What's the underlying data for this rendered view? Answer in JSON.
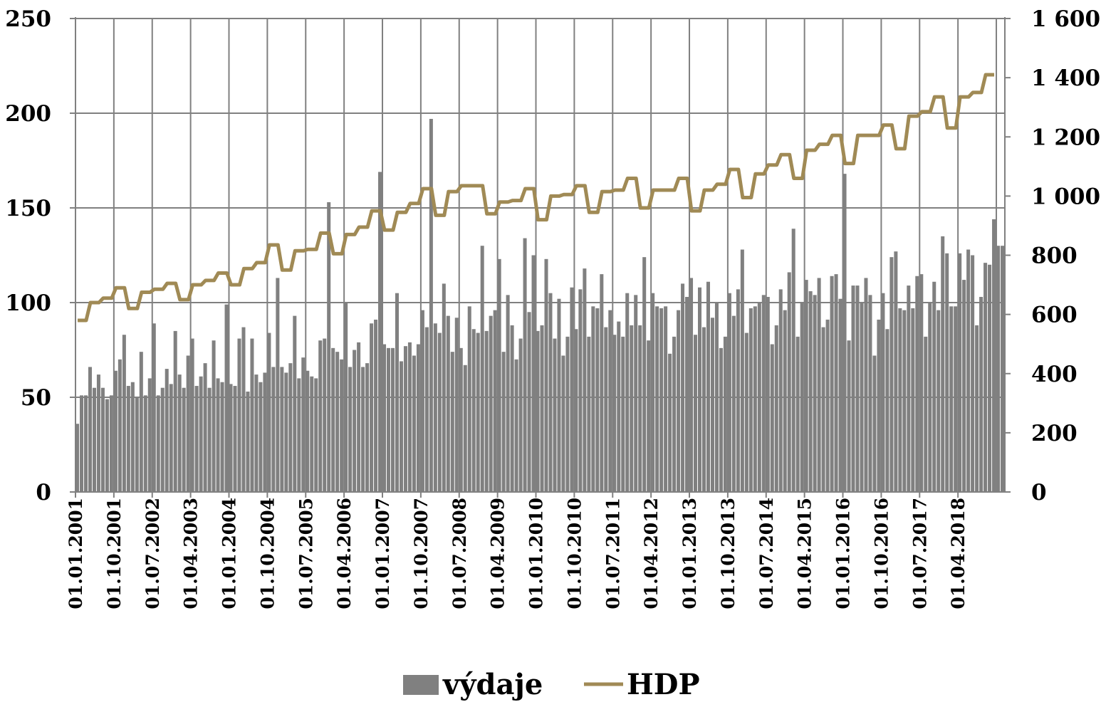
{
  "chart_data": {
    "type": "bar+line",
    "x_start": "2001-01",
    "x_end": "2018-12",
    "x_frequency": "monthly",
    "x_tick_labels": [
      "01.01.2001",
      "01.10.2001",
      "01.07.2002",
      "01.04.2003",
      "01.01.2004",
      "01.10.2004",
      "01.07.2005",
      "01.04.2006",
      "01.01.2007",
      "01.10.2007",
      "01.07.2008",
      "01.04.2009",
      "01.01.2010",
      "01.10.2010",
      "01.07.2011",
      "01.04.2012",
      "01.01.2013",
      "01.10.2013",
      "01.07.2014",
      "01.04.2015",
      "01.01.2016",
      "01.10.2016",
      "01.07.2017",
      "01.04.2018"
    ],
    "y_left": {
      "min": 0,
      "max": 250,
      "ticks": [
        0,
        50,
        100,
        150,
        200,
        250
      ],
      "tick_labels": [
        "0",
        "50",
        "100",
        "150",
        "200",
        "250"
      ]
    },
    "y_right": {
      "min": 0,
      "max": 1600,
      "ticks": [
        0,
        200,
        400,
        600,
        800,
        1000,
        1200,
        1400,
        1600
      ],
      "tick_labels": [
        "0",
        "200",
        "400",
        "600",
        "800",
        "1 000",
        "1 200",
        "1 400",
        "1 600"
      ]
    },
    "grid": {
      "vertical": true,
      "horizontal_left_axis": true
    },
    "legend": {
      "position": "bottom",
      "entries": [
        {
          "name": "výdaje",
          "mark": "bar"
        },
        {
          "name": "HDP",
          "mark": "line"
        }
      ]
    },
    "series": [
      {
        "name": "výdaje",
        "type": "bar",
        "axis": "left",
        "color": "#808080",
        "values": [
          36,
          51,
          51,
          66,
          55,
          62,
          55,
          49,
          51,
          64,
          70,
          83,
          56,
          58,
          50,
          74,
          51,
          60,
          89,
          51,
          55,
          65,
          57,
          85,
          62,
          55,
          72,
          81,
          56,
          61,
          68,
          55,
          80,
          60,
          58,
          99,
          57,
          56,
          81,
          87,
          53,
          81,
          62,
          58,
          63,
          84,
          66,
          113,
          66,
          63,
          68,
          93,
          60,
          71,
          64,
          61,
          60,
          80,
          81,
          153,
          76,
          74,
          70,
          100,
          66,
          75,
          79,
          66,
          68,
          89,
          91,
          169,
          78,
          76,
          76,
          105,
          69,
          77,
          79,
          72,
          78,
          96,
          87,
          197,
          89,
          84,
          110,
          93,
          74,
          92,
          76,
          67,
          98,
          86,
          84,
          130,
          85,
          93,
          96,
          123,
          74,
          104,
          88,
          70,
          81,
          134,
          95,
          125,
          85,
          88,
          123,
          105,
          81,
          102,
          72,
          82,
          108,
          86,
          107,
          118,
          82,
          98,
          97,
          115,
          87,
          96,
          83,
          90,
          82,
          105,
          88,
          104,
          88,
          124,
          80,
          105,
          98,
          97,
          98,
          73,
          82,
          96,
          110,
          103,
          113,
          83,
          108,
          87,
          111,
          92,
          100,
          76,
          82,
          105,
          93,
          107,
          128,
          84,
          97,
          98,
          100,
          104,
          103,
          78,
          88,
          107,
          96,
          116,
          139,
          82,
          100,
          112,
          106,
          104,
          113,
          87,
          91,
          114,
          115,
          102,
          168,
          80,
          109,
          109,
          100,
          113,
          104,
          72,
          91,
          105,
          86,
          124,
          127,
          97,
          96,
          109,
          97,
          114,
          115,
          82,
          100,
          111,
          96,
          135,
          126,
          98,
          98,
          126,
          112,
          128,
          125,
          88,
          103,
          121,
          120,
          144,
          130,
          130
        ]
      },
      {
        "name": "HDP",
        "type": "line",
        "axis": "right",
        "color": "#A08A55",
        "values": [
          580,
          580,
          580,
          640,
          640,
          640,
          655,
          655,
          655,
          690,
          690,
          690,
          620,
          620,
          620,
          675,
          675,
          675,
          685,
          685,
          685,
          705,
          705,
          705,
          650,
          650,
          650,
          700,
          700,
          700,
          715,
          715,
          715,
          740,
          740,
          740,
          700,
          700,
          700,
          755,
          755,
          755,
          775,
          775,
          775,
          835,
          835,
          835,
          750,
          750,
          750,
          815,
          815,
          815,
          820,
          820,
          820,
          875,
          875,
          875,
          805,
          805,
          805,
          870,
          870,
          870,
          895,
          895,
          895,
          950,
          950,
          950,
          885,
          885,
          885,
          945,
          945,
          945,
          975,
          975,
          975,
          1025,
          1025,
          1025,
          935,
          935,
          935,
          1015,
          1015,
          1015,
          1035,
          1035,
          1035,
          1035,
          1035,
          1035,
          940,
          940,
          940,
          980,
          980,
          980,
          985,
          985,
          985,
          1025,
          1025,
          1025,
          920,
          920,
          920,
          1000,
          1000,
          1000,
          1005,
          1005,
          1005,
          1035,
          1035,
          1035,
          945,
          945,
          945,
          1015,
          1015,
          1015,
          1020,
          1020,
          1020,
          1060,
          1060,
          1060,
          960,
          960,
          960,
          1020,
          1020,
          1020,
          1020,
          1020,
          1020,
          1060,
          1060,
          1060,
          950,
          950,
          950,
          1020,
          1020,
          1020,
          1040,
          1040,
          1040,
          1090,
          1090,
          1090,
          995,
          995,
          995,
          1075,
          1075,
          1075,
          1105,
          1105,
          1105,
          1140,
          1140,
          1140,
          1060,
          1060,
          1060,
          1155,
          1155,
          1155,
          1175,
          1175,
          1175,
          1205,
          1205,
          1205,
          1110,
          1110,
          1110,
          1205,
          1205,
          1205,
          1205,
          1205,
          1205,
          1240,
          1240,
          1240,
          1160,
          1160,
          1160,
          1270,
          1270,
          1270,
          1285,
          1285,
          1285,
          1335,
          1335,
          1335,
          1230,
          1230,
          1230,
          1335,
          1335,
          1335,
          1350,
          1350,
          1350,
          1410,
          1410,
          1410
        ]
      }
    ]
  }
}
